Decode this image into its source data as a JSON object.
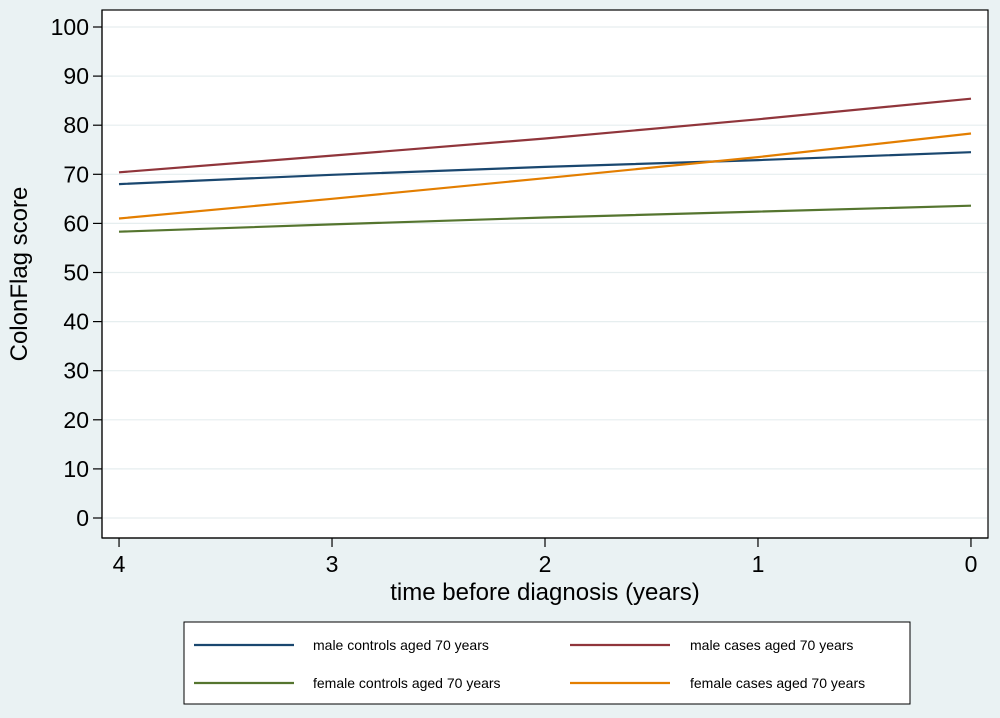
{
  "chart_data": {
    "type": "line",
    "xlabel": "time before diagnosis (years)",
    "ylabel": "ColonFlag score",
    "x": [
      4,
      3,
      2,
      1,
      0
    ],
    "xlim": [
      4.08,
      -0.08
    ],
    "ylim": [
      0,
      100
    ],
    "xticks": [
      4,
      3,
      2,
      1,
      0
    ],
    "yticks": [
      0,
      10,
      20,
      30,
      40,
      50,
      60,
      70,
      80,
      90,
      100
    ],
    "grid": "horizontal",
    "legend_position": "bottom",
    "colors": {
      "background": "#eaf2f3",
      "plot_background": "#ffffff",
      "grid": "#e6eeef"
    },
    "series": [
      {
        "name": "male controls aged 70 years",
        "color": "#1a476f",
        "values": [
          68.0,
          69.9,
          71.5,
          72.9,
          74.5
        ]
      },
      {
        "name": "male cases aged 70 years",
        "color": "#90353b",
        "values": [
          70.4,
          73.8,
          77.3,
          81.2,
          85.4
        ]
      },
      {
        "name": "female controls aged 70 years",
        "color": "#55752f",
        "values": [
          58.3,
          59.8,
          61.2,
          62.4,
          63.6
        ]
      },
      {
        "name": "female cases aged 70 years",
        "color": "#e37e00",
        "values": [
          61.0,
          65.0,
          69.2,
          73.5,
          78.3
        ]
      }
    ]
  }
}
